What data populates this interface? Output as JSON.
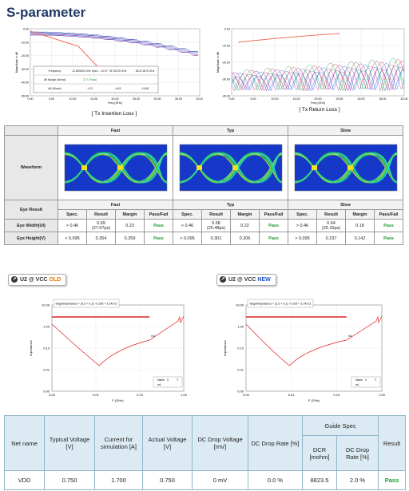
{
  "title": "S-parameter",
  "insertion_loss": {
    "caption": "[ Tx Insertion Loss ]",
    "x_label": "Freq (GHz)",
    "y_label": "Magnitude in dB",
    "y_ticks": [
      "0.00",
      "-10.00",
      "-20.00",
      "-30.00",
      "-40.00",
      "-50.00"
    ],
    "x_ticks": [
      "0.00",
      "5.00",
      "10.00",
      "15.00",
      "20.00",
      "25.00",
      "30.00",
      "35.00",
      "40.00"
    ],
    "table": [
      [
        "Frequency",
        "12.890625 GHz Spec.: -10.97",
        "25.78125 GHz",
        "38.671875 GHz"
      ],
      [
        "dB Margin (Worst)",
        "3.77 (Pass)"
      ],
      [
        "dB (Worst)",
        "-4.21",
        "-6.43",
        "-16.48"
      ]
    ]
  },
  "return_loss": {
    "caption": "[ Tx Return Loss ]",
    "x_label": "Freq (GHz)",
    "y_label": "Magnitude in dB",
    "y_ticks": [
      "0.00",
      "-10.00",
      "-20.00",
      "-30.00",
      "-40.00"
    ],
    "x_ticks": [
      "0.00",
      "5.00",
      "10.00",
      "15.00",
      "20.00",
      "25.00",
      "30.00",
      "35.00",
      "40.00"
    ]
  },
  "eye_table": {
    "waveform_label": "Waveform",
    "corners": [
      "Fast",
      "Typ",
      "Slow"
    ],
    "result_label": "Eye Result",
    "columns": [
      "Spec.",
      "Result",
      "Margin",
      "Pass/Fail"
    ],
    "rows": [
      {
        "label": "Eye Width(UI)",
        "cells": [
          "> 0.46",
          "0.69 (27.07ps)",
          "0.23",
          "Pass",
          "> 0.46",
          "0.68 (26.48ps)",
          "0.22",
          "Pass",
          "> 0.46",
          "0.64 (25.15ps)",
          "0.18",
          "Pass"
        ]
      },
      {
        "label": "Eye Height(V)",
        "cells": [
          "> 0.095",
          "0.354",
          "0.259",
          "Pass",
          "> 0.095",
          "0.301",
          "0.206",
          "Pass",
          "> 0.095",
          "0.237",
          "0.142",
          "Pass"
        ]
      }
    ]
  },
  "impedance": [
    {
      "tag": "U2 @ VCC",
      "version": "OLD",
      "y_label": "Impedance",
      "x_label": "F (GHz)",
      "y_ticks": [
        "10.00",
        "1.00",
        "0.10",
        "0.01",
        "0.00"
      ],
      "x_ticks": [
        "0.00",
        "0.01",
        "0.10",
        "1.00"
      ],
      "target": "TargetImpedance = (3.3 × 0.1) / 0.105 = 3.143 Ω",
      "marker": "m1",
      "legend": [
        "Name",
        "X",
        "Y"
      ]
    },
    {
      "tag": "U2 @ VCC",
      "version": "NEW",
      "y_label": "Impedance",
      "x_label": "F (GHz)",
      "y_ticks": [
        "10.00",
        "1.00",
        "0.10",
        "0.01",
        "0.00"
      ],
      "x_ticks": [
        "0.00",
        "0.01",
        "0.10",
        "1.00"
      ],
      "target": "TargetImpedance = (3.3 × 0.1) / 0.105 = 3.143 Ω",
      "marker": "m1",
      "legend": [
        "Name",
        "X",
        "Y"
      ]
    }
  ],
  "dc_table": {
    "headers": [
      "Net name",
      "Typical Voltage [V]",
      "Current for simulation [A]",
      "Actual Voltage [V]",
      "DC Drop Voltage [mV]",
      "DC Drop Rate [%]"
    ],
    "guide_spec": "Guide Spec",
    "guide_headers": [
      "DCR [mohm]",
      "DC Drop Rate [%]"
    ],
    "result_header": "Result",
    "rows": [
      [
        "VDD",
        "0.750",
        "1.700",
        "0.750",
        "0 mV",
        "0.0 %",
        "8823.5",
        "2.0 %",
        "Pass"
      ]
    ]
  }
}
